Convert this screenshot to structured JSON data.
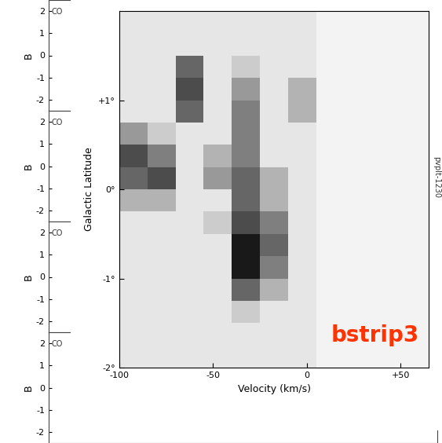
{
  "chart_data": [
    {
      "type": "heatmap",
      "xlabel": "Velocity (km/s)",
      "ylabel": "Galactic Latitude",
      "annotations": [
        "bstrip3",
        "pvplt-1230"
      ],
      "xlim": [
        -100,
        65
      ],
      "ylim": [
        -2,
        2
      ],
      "xticks": [
        -100,
        -50,
        0,
        {
          "value": 50,
          "label": "+50"
        }
      ],
      "yticks": [
        {
          "value": -2,
          "label": "-2°"
        },
        {
          "value": -1,
          "label": "-1°"
        },
        {
          "value": 0,
          "label": "0°"
        },
        {
          "value": 1,
          "label": "+1°"
        }
      ],
      "x_bins": [
        -100,
        -85,
        -70,
        -55,
        -40,
        -25,
        -10,
        5,
        20,
        35,
        50,
        65
      ],
      "y_bins": [
        -2,
        -1.75,
        -1.5,
        -1.25,
        -1,
        -0.75,
        -0.5,
        -0.25,
        0,
        0.25,
        0.5,
        0.75,
        1,
        1.25,
        1.5,
        1.75,
        2
      ],
      "clim": [
        0,
        1
      ],
      "cells": [
        [
          0.1,
          0.1,
          0.1,
          0.1,
          0.1,
          0.1,
          0.1,
          0.05,
          0.05,
          0.05,
          0.05
        ],
        [
          0.1,
          0.1,
          0.1,
          0.1,
          0.1,
          0.1,
          0.1,
          0.05,
          0.05,
          0.05,
          0.05
        ],
        [
          0.1,
          0.1,
          0.1,
          0.1,
          0.2,
          0.1,
          0.1,
          0.05,
          0.05,
          0.05,
          0.05
        ],
        [
          0.1,
          0.1,
          0.1,
          0.1,
          0.6,
          0.3,
          0.1,
          0.05,
          0.05,
          0.05,
          0.05
        ],
        [
          0.1,
          0.1,
          0.1,
          0.1,
          0.9,
          0.5,
          0.1,
          0.05,
          0.05,
          0.05,
          0.05
        ],
        [
          0.1,
          0.1,
          0.1,
          0.1,
          0.9,
          0.6,
          0.1,
          0.05,
          0.05,
          0.05,
          0.05
        ],
        [
          0.1,
          0.1,
          0.1,
          0.2,
          0.7,
          0.5,
          0.1,
          0.05,
          0.05,
          0.05,
          0.05
        ],
        [
          0.3,
          0.3,
          0.1,
          0.1,
          0.6,
          0.3,
          0.1,
          0.05,
          0.05,
          0.05,
          0.05
        ],
        [
          0.6,
          0.7,
          0.1,
          0.4,
          0.6,
          0.3,
          0.1,
          0.05,
          0.05,
          0.05,
          0.05
        ],
        [
          0.7,
          0.5,
          0.1,
          0.3,
          0.5,
          0.1,
          0.1,
          0.05,
          0.05,
          0.05,
          0.05
        ],
        [
          0.4,
          0.2,
          0.1,
          0.1,
          0.5,
          0.1,
          0.1,
          0.05,
          0.05,
          0.05,
          0.05
        ],
        [
          0.1,
          0.1,
          0.6,
          0.1,
          0.5,
          0.1,
          0.3,
          0.05,
          0.05,
          0.05,
          0.05
        ],
        [
          0.1,
          0.1,
          0.7,
          0.1,
          0.4,
          0.1,
          0.3,
          0.05,
          0.05,
          0.05,
          0.05
        ],
        [
          0.1,
          0.1,
          0.6,
          0.1,
          0.2,
          0.1,
          0.1,
          0.05,
          0.05,
          0.05,
          0.05
        ],
        [
          0.1,
          0.1,
          0.1,
          0.1,
          0.1,
          0.1,
          0.1,
          0.05,
          0.05,
          0.05,
          0.05
        ],
        [
          0.1,
          0.1,
          0.1,
          0.1,
          0.1,
          0.1,
          0.1,
          0.05,
          0.05,
          0.05,
          0.05
        ]
      ]
    },
    {
      "type": "blank",
      "ylabel": "B",
      "ylim": [
        -2.5,
        2.5
      ],
      "yticks": [
        -2,
        -1,
        0,
        1,
        2
      ],
      "tick_labels": "y",
      "annotations": [
        "CO"
      ]
    },
    {
      "type": "blank",
      "ylabel": "B",
      "ylim": [
        -2.5,
        2.5
      ],
      "yticks": [
        -2,
        -1,
        0,
        1,
        2
      ],
      "tick_labels": "y",
      "annotations": [
        "CO"
      ]
    },
    {
      "type": "blank",
      "ylabel": "B",
      "ylim": [
        -2.5,
        2.5
      ],
      "yticks": [
        -2,
        -1,
        0,
        1,
        2
      ],
      "tick_labels": "y",
      "annotations": [
        "CO"
      ]
    },
    {
      "type": "blank",
      "ylabel": "B",
      "ylim": [
        -2.5,
        2.5
      ],
      "yticks": [
        -2,
        -1,
        0,
        1,
        2
      ],
      "tick_labels": "y",
      "annotations": [
        "CO"
      ]
    }
  ]
}
